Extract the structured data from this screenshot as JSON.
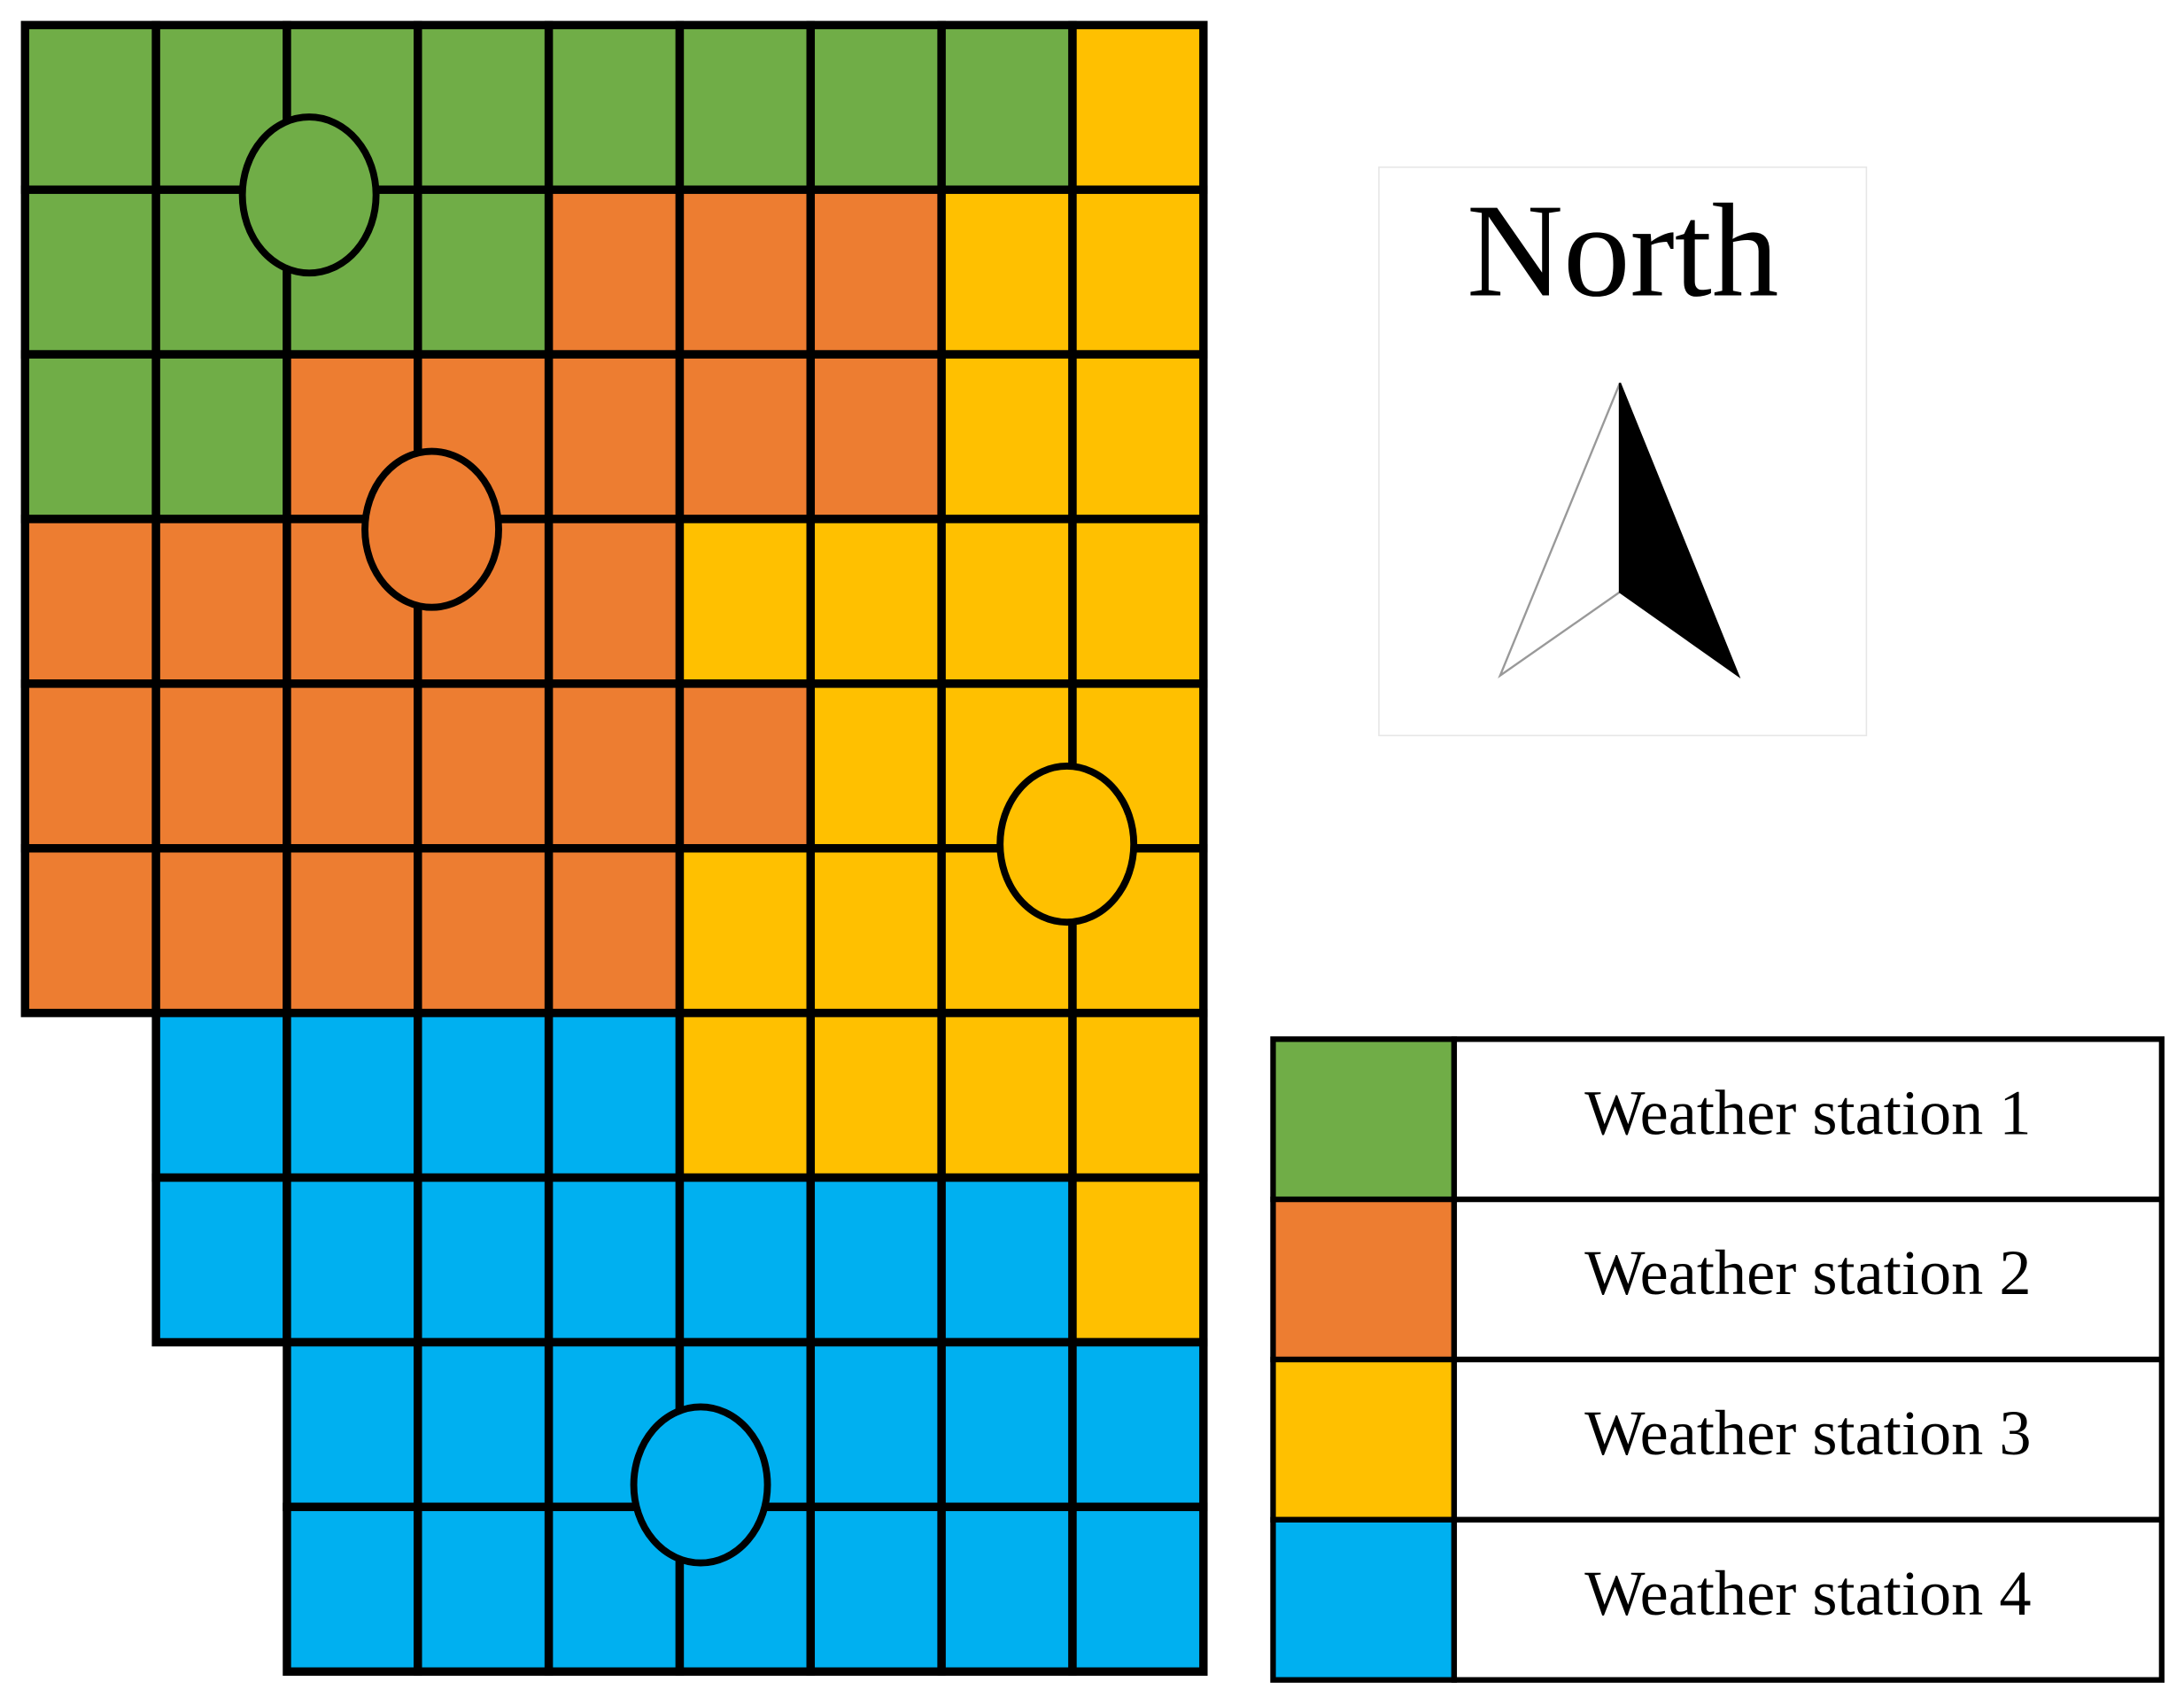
{
  "compass": {
    "label": "North"
  },
  "legend": {
    "items": [
      {
        "label": "Weather station 1"
      },
      {
        "label": "Weather station 2"
      },
      {
        "label": "Weather station 3"
      },
      {
        "label": "Weather station 4"
      }
    ]
  }
}
